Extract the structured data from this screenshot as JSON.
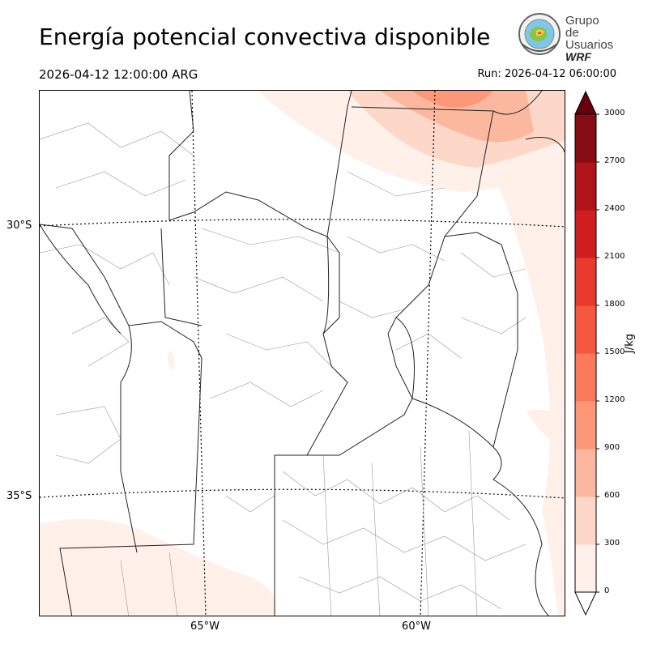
{
  "title": "Energía potencial convectiva disponible",
  "valid_time": "2026-04-12 12:00:00 ARG",
  "run_time": "Run: 2026-04-12 06:00:00",
  "logo": {
    "line1": "Grupo de",
    "line2": "Usuarios",
    "line3": "WRF"
  },
  "map": {
    "lat_labels": [
      "30°S",
      "35°S"
    ],
    "lon_labels": [
      "65°W",
      "60°W"
    ]
  },
  "colorbar": {
    "unit": "J/kg",
    "ticks": [
      "0",
      "300",
      "600",
      "900",
      "1200",
      "1500",
      "1800",
      "2100",
      "2400",
      "2700",
      "3000"
    ],
    "colors": [
      "#fff0ea",
      "#fdd7c7",
      "#fcb89e",
      "#fc9878",
      "#fb7a5a",
      "#f6583f",
      "#e83a2f",
      "#cf1e20",
      "#b0141a",
      "#850c12"
    ],
    "extend_over_color": "#67000d",
    "extend_under_color": "#ffffff"
  }
}
